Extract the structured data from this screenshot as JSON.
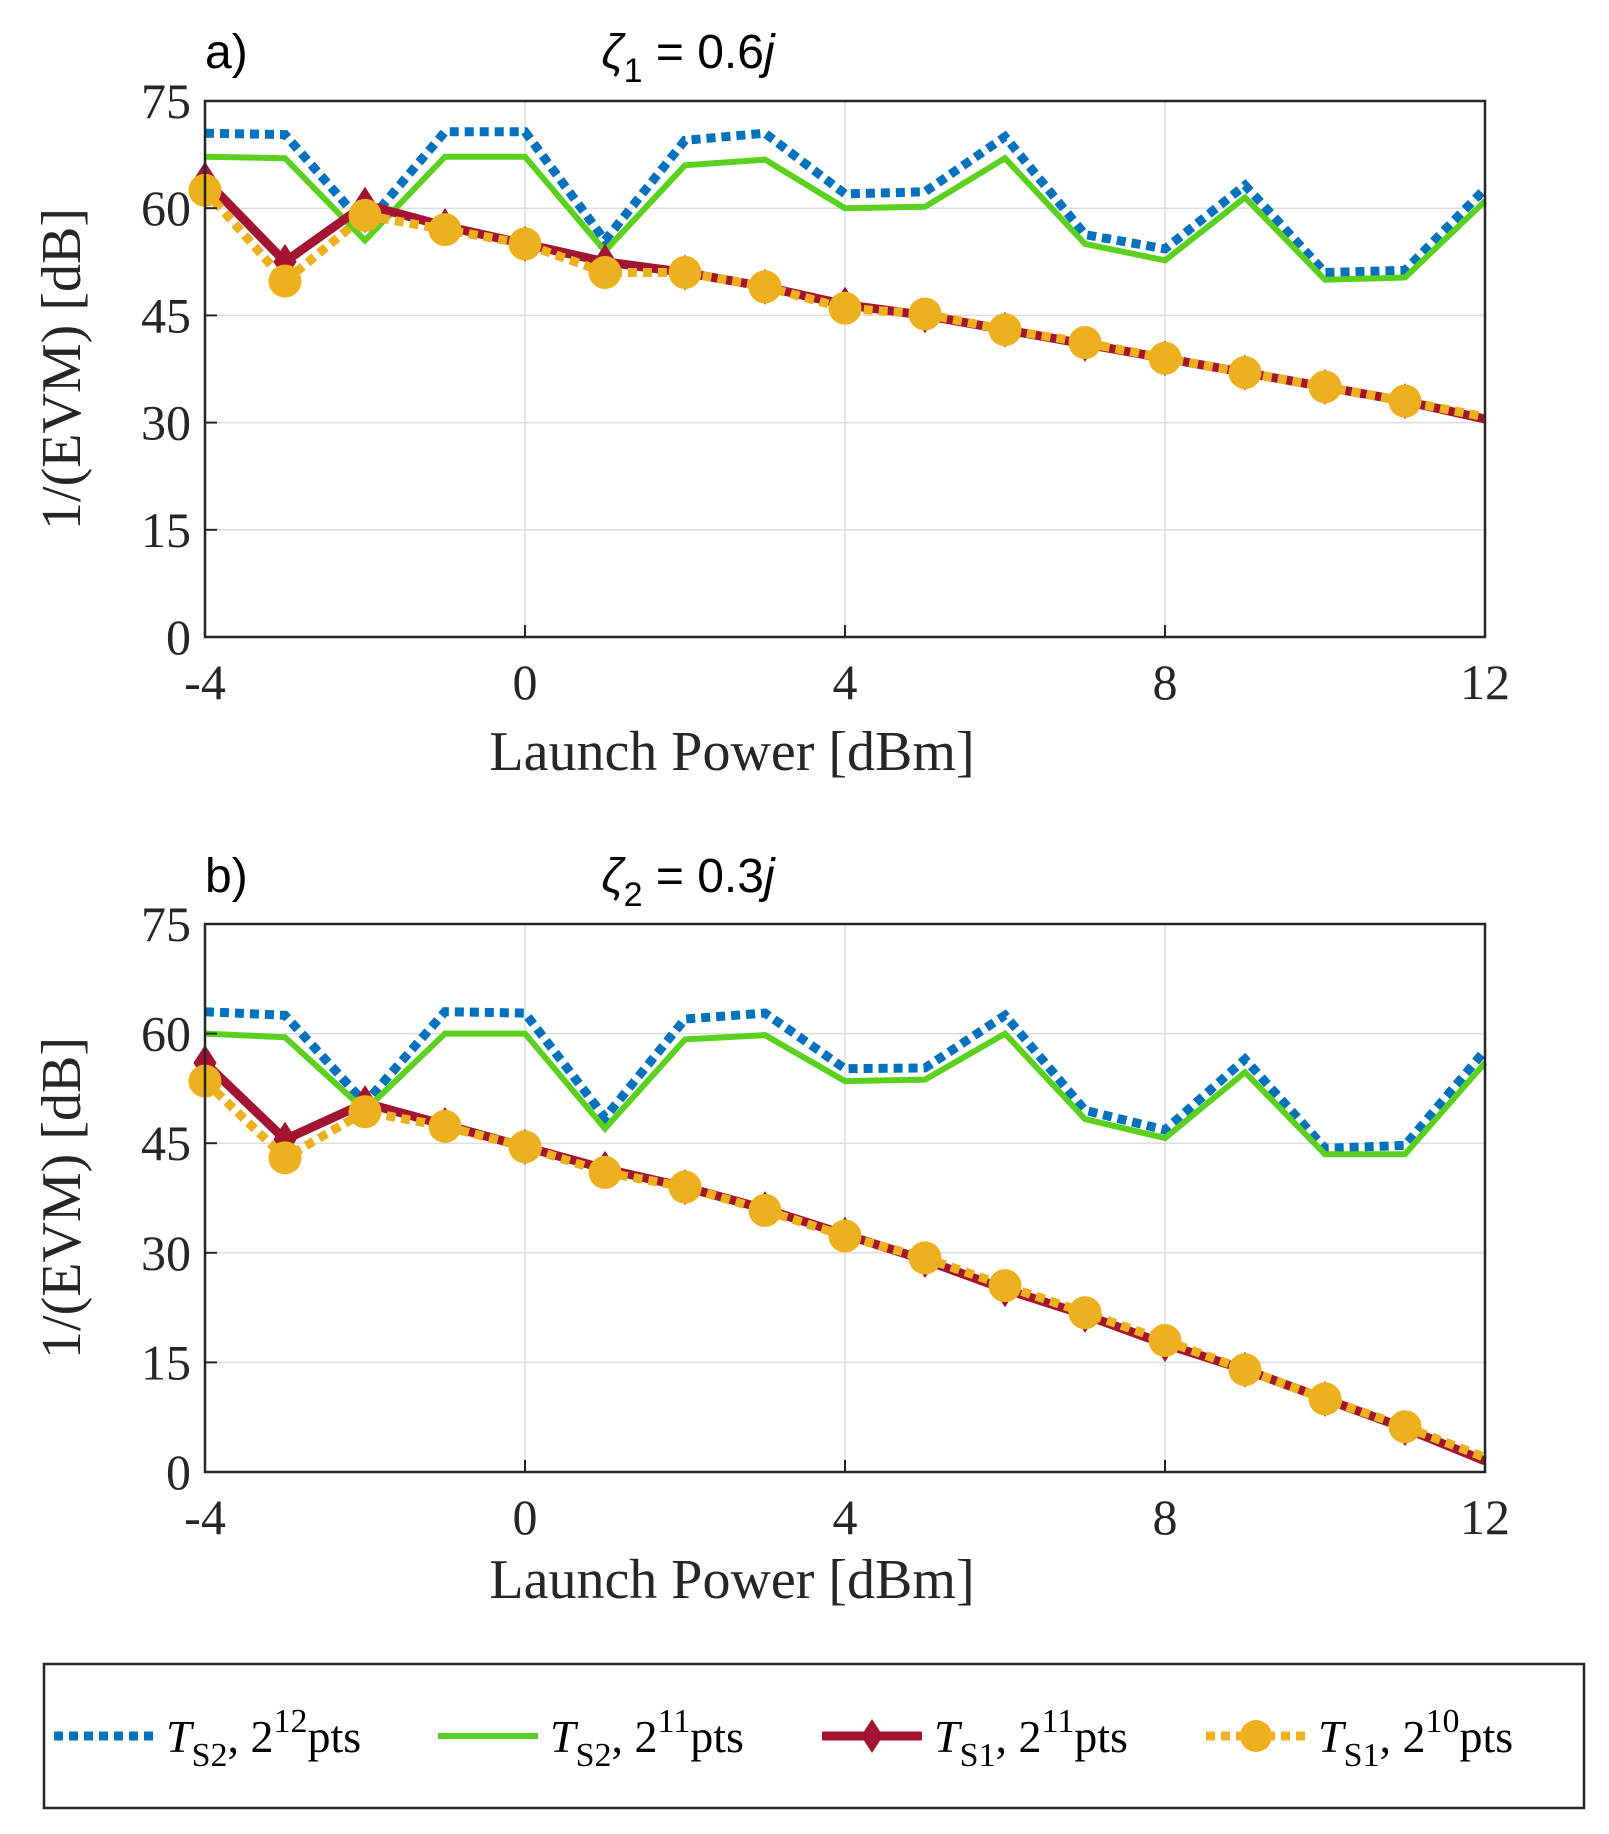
{
  "chart_data": [
    {
      "type": "line",
      "panel_label": "a)",
      "title_symbol": "ζ",
      "title_subscript": "1",
      "title_value": " = 0.6",
      "title_unit": "j",
      "xlabel": "Launch Power [dBm]",
      "ylabel": "1/(EVM) [dB]",
      "xlim": [
        -4,
        12
      ],
      "ylim": [
        0,
        75
      ],
      "xticks": [
        "-4",
        "0",
        "4",
        "8",
        "12"
      ],
      "yticks": [
        "0",
        "15",
        "30",
        "45",
        "60",
        "75"
      ],
      "grid": true,
      "x": [
        -4,
        -3,
        -2,
        -1,
        0,
        1,
        2,
        3,
        4,
        5,
        6,
        7,
        8,
        9,
        10,
        11,
        12
      ],
      "series": [
        {
          "name": "T_S2, 2^12 pts",
          "values": [
            70.5,
            70.3,
            57.5,
            70.7,
            70.7,
            55.5,
            69.5,
            70.5,
            62,
            62.3,
            70,
            56.3,
            54.3,
            63.2,
            51,
            51.3,
            62.7
          ]
        },
        {
          "name": "T_S2, 2^11 pts",
          "values": [
            67.2,
            67,
            55.5,
            67.2,
            67.2,
            54,
            66,
            66.8,
            60,
            60.2,
            67,
            55,
            52.7,
            61.5,
            50,
            50.3,
            61
          ]
        },
        {
          "name": "T_S1, 2^11 pts",
          "values": [
            64,
            52.5,
            60.5,
            57.5,
            55,
            52.5,
            51,
            49,
            46.5,
            45,
            43,
            41,
            39,
            37,
            35,
            33,
            30.5
          ]
        },
        {
          "name": "T_S1, 2^10 pts",
          "values": [
            62.5,
            49.8,
            59,
            57,
            55,
            51,
            51,
            49,
            46,
            45.2,
            43,
            41.2,
            39,
            37,
            35,
            33,
            30.8
          ]
        }
      ]
    },
    {
      "type": "line",
      "panel_label": "b)",
      "title_symbol": "ζ",
      "title_subscript": "2",
      "title_value": " = 0.3",
      "title_unit": "j",
      "xlabel": "Launch Power [dBm]",
      "ylabel": "1/(EVM) [dB]",
      "xlim": [
        -4,
        12
      ],
      "ylim": [
        0,
        75
      ],
      "xticks": [
        "-4",
        "0",
        "4",
        "8",
        "12"
      ],
      "yticks": [
        "0",
        "15",
        "30",
        "45",
        "60",
        "75"
      ],
      "grid": true,
      "x": [
        -4,
        -3,
        -2,
        -1,
        0,
        1,
        2,
        3,
        4,
        5,
        6,
        7,
        8,
        9,
        10,
        11,
        12
      ],
      "series": [
        {
          "name": "T_S2, 2^12 pts",
          "values": [
            63,
            62.5,
            50.5,
            63,
            62.8,
            48.5,
            62,
            62.8,
            55.2,
            55.3,
            62.5,
            49.5,
            46.8,
            56.5,
            44.3,
            44.7,
            57.7
          ]
        },
        {
          "name": "T_S2, 2^11 pts",
          "values": [
            60,
            59.5,
            49.5,
            60,
            60,
            47,
            59.2,
            59.8,
            53.5,
            53.7,
            60,
            48.3,
            45.7,
            54.7,
            43.5,
            43.5,
            56
          ]
        },
        {
          "name": "T_S1, 2^11 pts",
          "values": [
            56,
            45.5,
            50.5,
            47.5,
            44.5,
            41.5,
            39,
            36,
            32.5,
            29,
            25,
            21.5,
            17.5,
            14,
            10,
            6,
            1.5
          ]
        },
        {
          "name": "T_S1, 2^10 pts",
          "values": [
            53.5,
            43,
            49.3,
            47.3,
            44.5,
            41,
            39,
            35.8,
            32.3,
            29.3,
            25.5,
            21.8,
            18,
            14,
            10,
            6.2,
            2
          ]
        }
      ]
    }
  ],
  "legend": {
    "position": "bottom",
    "entries": [
      {
        "var": "T",
        "sub": "S2",
        "sep": ", 2",
        "exp": "12",
        "suffix": "pts",
        "color": "#0072BD",
        "style": "dotted"
      },
      {
        "var": "T",
        "sub": "S2",
        "sep": ", 2",
        "exp": "11",
        "suffix": "pts",
        "color": "#5BD01E",
        "style": "solid"
      },
      {
        "var": "T",
        "sub": "S1",
        "sep": ", 2",
        "exp": "11",
        "suffix": "pts",
        "color": "#A2142F",
        "style": "solid-diamond"
      },
      {
        "var": "T",
        "sub": "S1",
        "sep": ", 2",
        "exp": "10",
        "suffix": "pts",
        "color": "#EDB120",
        "style": "dotted-circle"
      }
    ]
  },
  "colors": {
    "blue": "#0072BD",
    "green": "#5BD01E",
    "red": "#A2142F",
    "yellow": "#EDB120",
    "axis": "#262626",
    "grid": "#DDDDDD"
  }
}
